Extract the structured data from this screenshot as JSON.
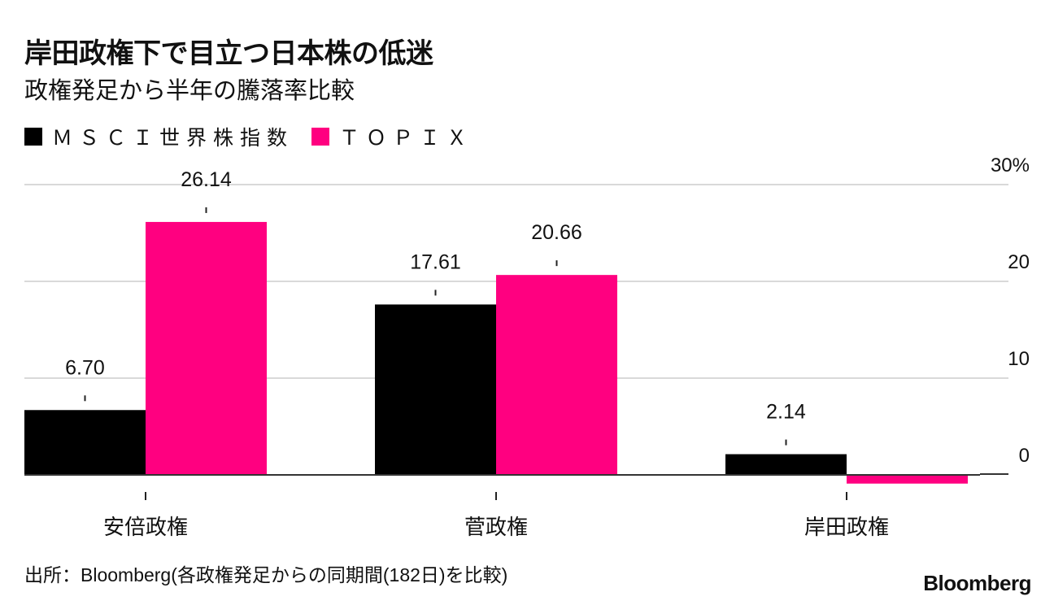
{
  "title": "岸田政権下で目立つ日本株の低迷",
  "subtitle": "政権発足から半年の騰落率比較",
  "source": "出所：Bloomberg(各政権発足からの同期間(182日)を比較)",
  "logo": "Bloomberg",
  "colors": {
    "msci": "#000000",
    "topix": "#ff0080",
    "grid": "#d9d9d9",
    "axis": "#333333"
  },
  "chart_data": {
    "type": "bar",
    "title": "岸田政権下で目立つ日本株の低迷",
    "subtitle": "政権発足から半年の騰落率比較",
    "categories": [
      "安倍政権",
      "菅政権",
      "岸田政権"
    ],
    "series": [
      {
        "name": "ＭＳＣＩ世界株指数",
        "values": [
          6.7,
          17.61,
          2.14
        ],
        "labels": [
          "6.70",
          "17.61",
          "2.14"
        ]
      },
      {
        "name": "ＴＯＰＩＸ",
        "values": [
          26.14,
          20.66,
          -0.9
        ],
        "labels": [
          "26.14",
          "20.66",
          ""
        ]
      }
    ],
    "yticks": [
      "30%",
      "20",
      "10",
      "0"
    ],
    "ytick_values": [
      30,
      20,
      10,
      0
    ],
    "ylim": [
      -1,
      30
    ],
    "axis_side": "right",
    "legend": "top-left"
  }
}
